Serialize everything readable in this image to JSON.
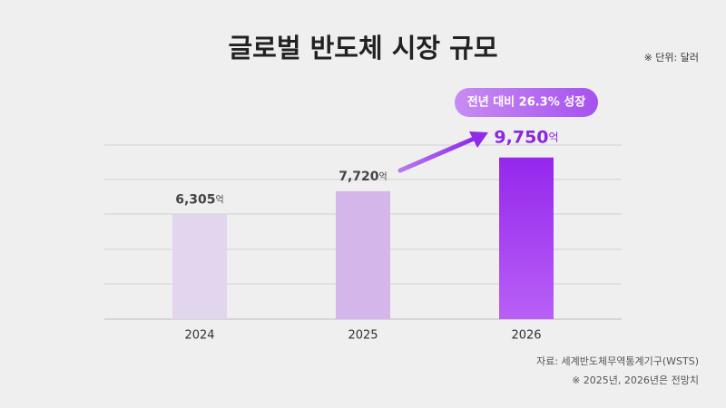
{
  "chart_data": {
    "type": "bar",
    "title": "글로벌 반도체 시장 규모",
    "unit_note": "※ 단위: 달러",
    "categories": [
      "2024",
      "2025",
      "2026"
    ],
    "values": [
      6305,
      7720,
      9750
    ],
    "value_labels": [
      "6,305",
      "7,720",
      "9,750"
    ],
    "value_unit": "억",
    "colors": [
      "#e2d5ee",
      "#d4b6ea",
      "#9b33ee"
    ],
    "annotation": "전년 대비 26.3% 성장",
    "ylim": [
      0,
      10500
    ],
    "source": "자료: 세계반도체무역통계기구(WSTS)",
    "note": "※ 2025년, 2026년은 전망치"
  }
}
